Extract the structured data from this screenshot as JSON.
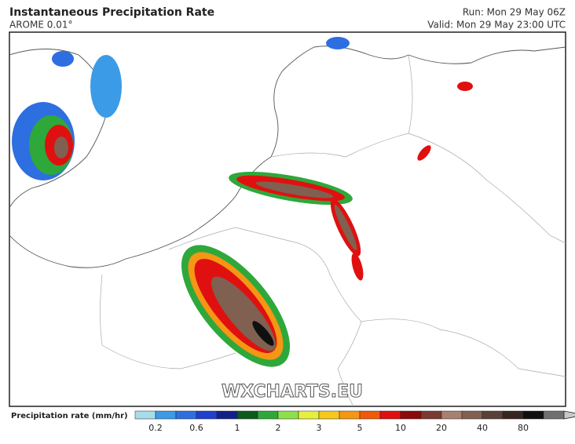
{
  "header": {
    "title": "Instantaneous Precipitation Rate",
    "subtitle": "AROME 0.01°",
    "run": "Run: Mon 29 May 06Z",
    "valid": "Valid: Mon 29 May 23:00 UTC"
  },
  "watermark": "WXCHARTS.EU",
  "legend": {
    "label": "Precipitation rate (mm/hr)",
    "ticks": [
      0.2,
      0.6,
      1,
      2,
      3,
      5,
      10,
      20,
      40,
      80
    ],
    "colors": [
      "#a8dcea",
      "#3c9be6",
      "#2d6fe0",
      "#1f3fd0",
      "#14208a",
      "#0d5a1c",
      "#2ea83a",
      "#8ee04a",
      "#e6f03c",
      "#f5c81e",
      "#f59614",
      "#f05a0a",
      "#e01010",
      "#8c0a0a",
      "#7a3a32",
      "#a88070",
      "#806050",
      "#5a4036",
      "#382620",
      "#101010",
      "#707070",
      "#c8c8c8"
    ]
  }
}
